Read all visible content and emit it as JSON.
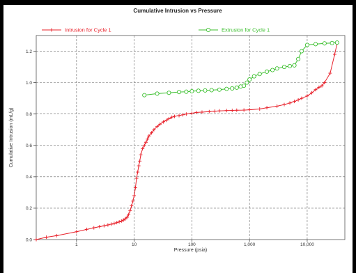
{
  "chart_data": {
    "type": "line",
    "title": "Cumulative Intrusion vs Pressure",
    "xlabel": "Pressure (psia)",
    "ylabel": "Cumulative Intrusion (mL/g)",
    "xscale": "log",
    "xlim": [
      0.2,
      45000
    ],
    "ylim": [
      0.0,
      1.3
    ],
    "grid": true,
    "legend_position": "top",
    "x_ticks": [
      {
        "value": 1,
        "label": "1"
      },
      {
        "value": 10,
        "label": "10"
      },
      {
        "value": 100,
        "label": "100"
      },
      {
        "value": 1000,
        "label": "1,000"
      },
      {
        "value": 10000,
        "label": "10,000"
      }
    ],
    "y_ticks": [
      {
        "value": 0.0,
        "label": "0.0"
      },
      {
        "value": 0.2,
        "label": "0.2"
      },
      {
        "value": 0.4,
        "label": "0.4"
      },
      {
        "value": 0.6,
        "label": "0.6"
      },
      {
        "value": 0.8,
        "label": "0.8"
      },
      {
        "value": 1.0,
        "label": "1.0"
      },
      {
        "value": 1.2,
        "label": "1.2"
      }
    ],
    "series": [
      {
        "name": "Intrusion for Cycle 1",
        "color": "#e8202a",
        "marker": "plus",
        "x": [
          0.2,
          0.3,
          0.45,
          1.0,
          1.5,
          2.0,
          2.5,
          3.0,
          3.5,
          4.0,
          4.5,
          5.0,
          5.5,
          6.0,
          6.5,
          7.0,
          7.5,
          8.0,
          8.5,
          9.0,
          9.5,
          10.0,
          10.5,
          11.0,
          11.5,
          12.0,
          12.5,
          13.0,
          14.0,
          15.0,
          16.0,
          17.0,
          18.0,
          20.0,
          22.0,
          25.0,
          28.0,
          32.0,
          36.0,
          40.0,
          45.0,
          50.0,
          60.0,
          70.0,
          80.0,
          100.0,
          120.0,
          150.0,
          200.0,
          250.0,
          300.0,
          400.0,
          500.0,
          600.0,
          800.0,
          1000.0,
          1500.0,
          2000.0,
          3000.0,
          4000.0,
          5000.0,
          6000.0,
          7000.0,
          8000.0,
          10000.0,
          12000.0,
          14000.0,
          16000.0,
          18000.0,
          20000.0,
          25000.0,
          30000.0,
          33000.0
        ],
        "y": [
          0.0,
          0.015,
          0.025,
          0.05,
          0.065,
          0.075,
          0.082,
          0.088,
          0.093,
          0.098,
          0.103,
          0.108,
          0.113,
          0.118,
          0.124,
          0.132,
          0.142,
          0.16,
          0.185,
          0.215,
          0.245,
          0.28,
          0.33,
          0.39,
          0.43,
          0.47,
          0.5,
          0.54,
          0.58,
          0.6,
          0.62,
          0.64,
          0.66,
          0.68,
          0.7,
          0.72,
          0.735,
          0.75,
          0.76,
          0.77,
          0.78,
          0.785,
          0.79,
          0.795,
          0.8,
          0.805,
          0.81,
          0.812,
          0.815,
          0.818,
          0.82,
          0.822,
          0.823,
          0.824,
          0.825,
          0.827,
          0.832,
          0.84,
          0.85,
          0.86,
          0.87,
          0.88,
          0.89,
          0.9,
          0.915,
          0.935,
          0.955,
          0.97,
          0.98,
          1.0,
          1.06,
          1.18,
          1.25
        ]
      },
      {
        "name": "Extrusion for Cycle 1",
        "color": "#3bbf2e",
        "marker": "circle",
        "x": [
          15.0,
          25.0,
          40.0,
          60.0,
          80.0,
          100.0,
          130.0,
          170.0,
          220.0,
          300.0,
          400.0,
          500.0,
          600.0,
          700.0,
          800.0,
          900.0,
          1000.0,
          1200.0,
          1500.0,
          2000.0,
          2500.0,
          3000.0,
          4000.0,
          5000.0,
          6000.0,
          7000.0,
          8000.0,
          10000.0,
          14000.0,
          20000.0,
          27000.0,
          33000.0
        ],
        "y": [
          0.92,
          0.93,
          0.935,
          0.94,
          0.942,
          0.945,
          0.948,
          0.95,
          0.952,
          0.955,
          0.96,
          0.963,
          0.968,
          0.975,
          0.98,
          1.0,
          1.02,
          1.04,
          1.055,
          1.07,
          1.08,
          1.09,
          1.1,
          1.105,
          1.11,
          1.15,
          1.2,
          1.24,
          1.245,
          1.25,
          1.252,
          1.255
        ]
      }
    ]
  }
}
